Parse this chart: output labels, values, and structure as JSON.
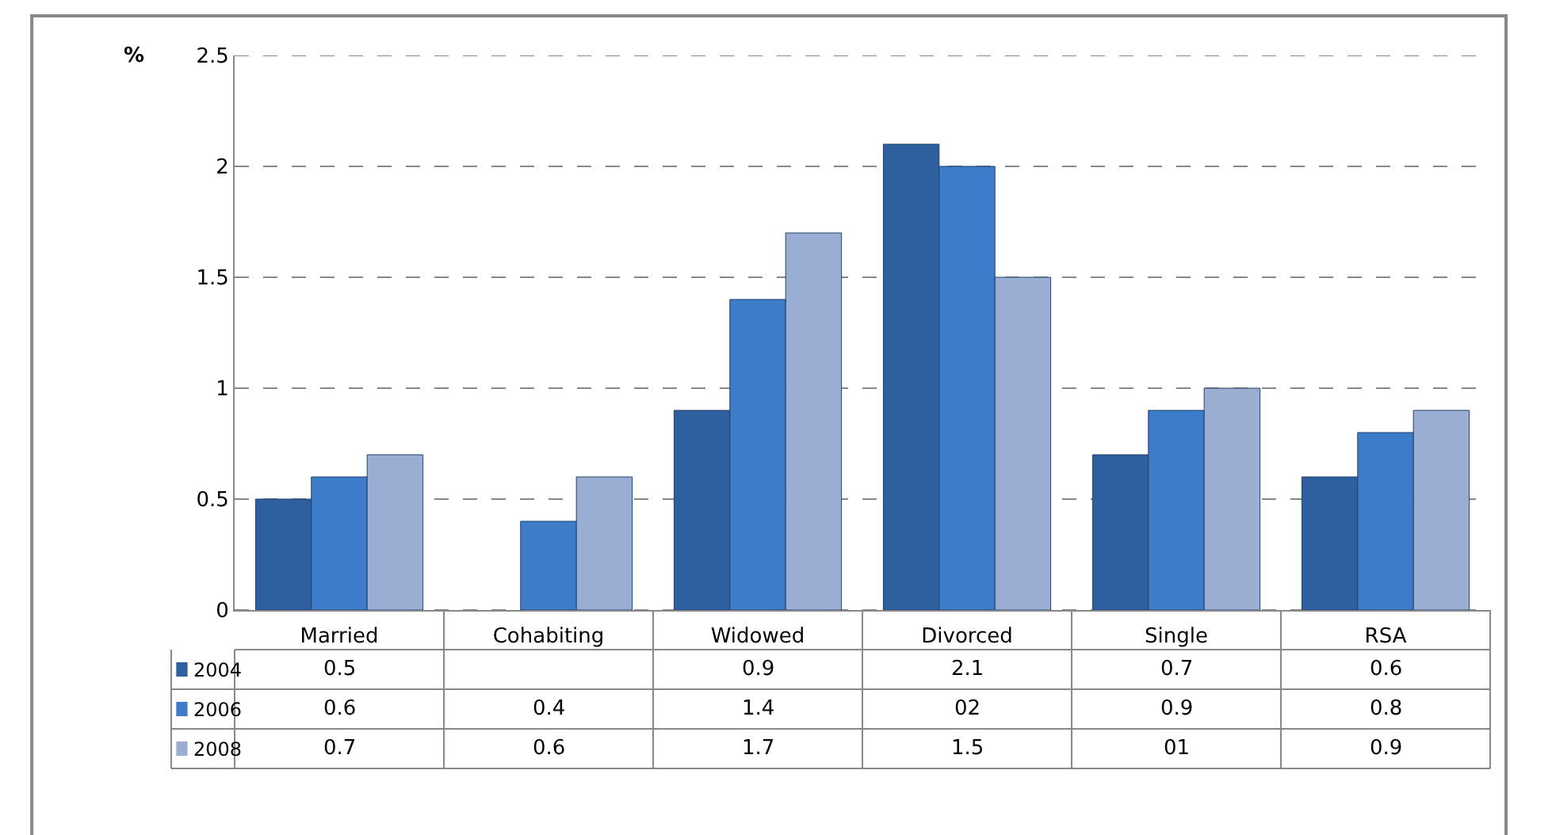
{
  "chart_data": {
    "type": "bar",
    "ylabel": "%",
    "categories": [
      "Married",
      "Cohabiting",
      "Widowed",
      "Divorced",
      "Single",
      "RSA"
    ],
    "series": [
      {
        "name": "2004",
        "color": "#2e5f9e",
        "values": [
          0.5,
          null,
          0.9,
          2.1,
          0.7,
          0.6
        ],
        "value_labels": [
          "0.5",
          null,
          "0.9",
          "2.1",
          "0.7",
          "0.6"
        ]
      },
      {
        "name": "2006",
        "color": "#3d7cc9",
        "values": [
          0.6,
          0.4,
          1.4,
          2.0,
          0.9,
          0.8
        ],
        "value_labels": [
          "0.6",
          "0.4",
          "1.4",
          "02",
          "0.9",
          "0.8"
        ]
      },
      {
        "name": "2008",
        "color": "#9aaed3",
        "values": [
          0.7,
          0.6,
          1.7,
          1.5,
          1.0,
          0.9
        ],
        "value_labels": [
          "0.7",
          "0.6",
          "1.7",
          "1.5",
          "01",
          "0.9"
        ]
      }
    ],
    "ylim": [
      0,
      2.5
    ],
    "yticks": [
      0,
      0.5,
      1,
      1.5,
      2,
      2.5
    ],
    "grid": "y",
    "legend": "bottom left"
  }
}
